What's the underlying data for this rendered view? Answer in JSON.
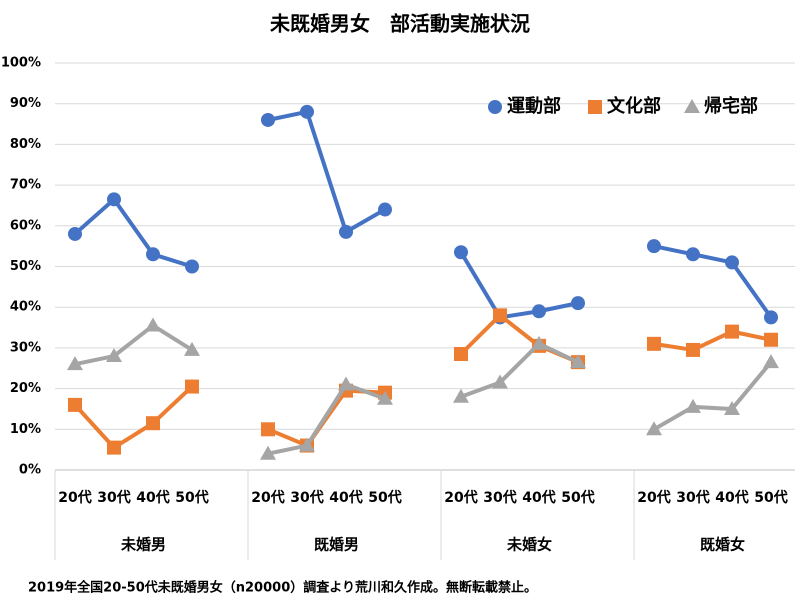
{
  "chart_data": {
    "type": "line",
    "title": "未既婚男女　部活動実施状況",
    "groups": [
      {
        "name": "未婚男",
        "categories": [
          "20代",
          "30代",
          "40代",
          "50代"
        ]
      },
      {
        "name": "既婚男",
        "categories": [
          "20代",
          "30代",
          "40代",
          "50代"
        ]
      },
      {
        "name": "未婚女",
        "categories": [
          "20代",
          "30代",
          "40代",
          "50代"
        ]
      },
      {
        "name": "既婚女",
        "categories": [
          "20代",
          "30代",
          "40代",
          "50代"
        ]
      }
    ],
    "series": [
      {
        "name": "運動部",
        "color": "#4472c4",
        "marker": "circle",
        "values": [
          [
            58,
            66.5,
            53,
            50
          ],
          [
            86,
            88,
            58.5,
            64
          ],
          [
            53.5,
            37.5,
            39,
            41
          ],
          [
            55,
            53,
            51,
            37.5
          ]
        ]
      },
      {
        "name": "文化部",
        "color": "#ed7d31",
        "marker": "square",
        "values": [
          [
            16,
            5.5,
            11.5,
            20.5
          ],
          [
            10,
            6,
            19.5,
            19
          ],
          [
            28.5,
            38,
            30.5,
            26.5
          ],
          [
            31,
            29.5,
            34,
            32
          ]
        ]
      },
      {
        "name": "帰宅部",
        "color": "#a5a5a5",
        "marker": "triangle",
        "values": [
          [
            26,
            28,
            35.5,
            29.5
          ],
          [
            4,
            6,
            21,
            17.5
          ],
          [
            18,
            21.5,
            31,
            26.5
          ],
          [
            10,
            15.5,
            15,
            26.5
          ]
        ]
      }
    ],
    "ylim": [
      0,
      100
    ],
    "yticks": [
      {
        "value": 0,
        "label": "0%"
      },
      {
        "value": 10,
        "label": "10%"
      },
      {
        "value": 20,
        "label": "20%"
      },
      {
        "value": 30,
        "label": "30%"
      },
      {
        "value": 40,
        "label": "40%"
      },
      {
        "value": 50,
        "label": "50%"
      },
      {
        "value": 60,
        "label": "60%"
      },
      {
        "value": 70,
        "label": "70%"
      },
      {
        "value": 80,
        "label": "80%"
      },
      {
        "value": 90,
        "label": "90%"
      },
      {
        "value": 100,
        "label": "100%"
      }
    ],
    "grid": true,
    "legend": "upper right",
    "footnote": "2019年全国20-50代未既婚男女（n20000）調査より荒川和久作成。無断転載禁止。"
  }
}
